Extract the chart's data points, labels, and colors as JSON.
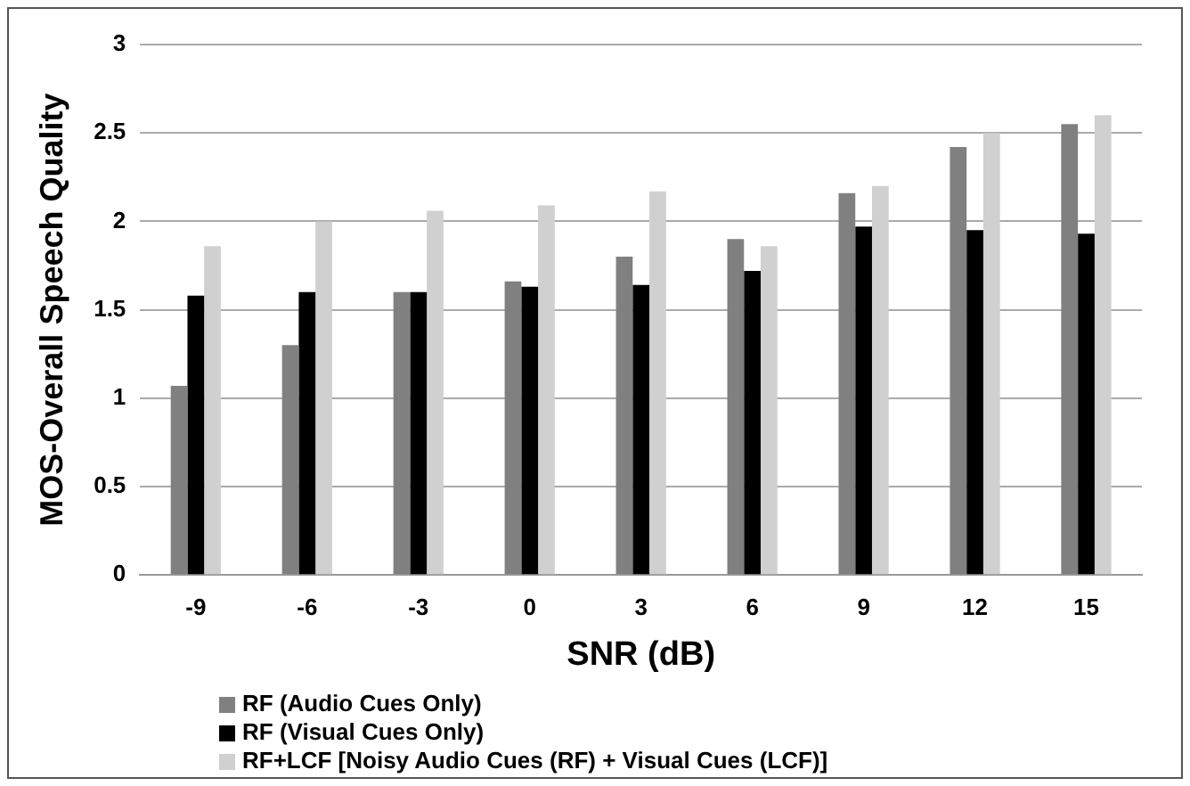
{
  "chart_data": {
    "type": "bar",
    "xlabel": "SNR (dB)",
    "ylabel": "MOS-Overall Speech Quality",
    "categories": [
      "-9",
      "-6",
      "-3",
      "0",
      "3",
      "6",
      "9",
      "12",
      "15"
    ],
    "series": [
      {
        "name": "RF (Audio Cues Only)",
        "color": "#808080",
        "values": [
          1.07,
          1.3,
          1.6,
          1.66,
          1.8,
          1.9,
          2.16,
          2.42,
          2.55
        ]
      },
      {
        "name": "RF (Visual Cues Only)",
        "color": "#000000",
        "values": [
          1.58,
          1.6,
          1.6,
          1.63,
          1.64,
          1.72,
          1.97,
          1.95,
          1.93
        ]
      },
      {
        "name": "RF+LCF [Noisy Audio Cues (RF) + Visual Cues (LCF)]",
        "color": "#d0d0d0",
        "values": [
          1.86,
          2.0,
          2.06,
          2.09,
          2.17,
          1.86,
          2.2,
          2.5,
          2.6
        ]
      }
    ],
    "ylim": [
      0,
      3
    ],
    "yticks": [
      0,
      0.5,
      1,
      1.5,
      2,
      2.5,
      3
    ],
    "grid": "y",
    "legend": "bottom"
  }
}
